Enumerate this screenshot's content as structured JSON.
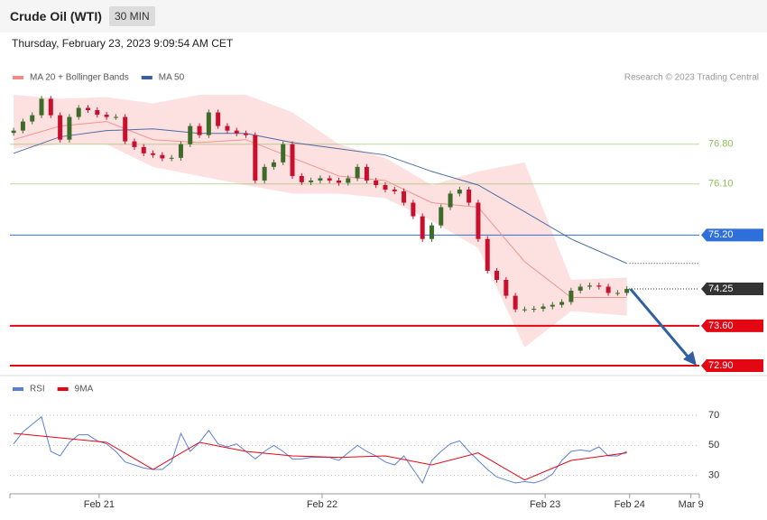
{
  "header": {
    "title": "Crude Oil (WTI)",
    "timeframe": "30 MIN",
    "datetime": "Thursday, February 23, 2023 9:09:54 AM CET",
    "credit": "Research © 2023 Trading Central"
  },
  "chart_data": [
    {
      "type": "candlestick",
      "xlim": [
        -0.4,
        73.8
      ],
      "ylim": [
        72.74,
        77.75
      ],
      "up_color": "#3d6b2a",
      "down_color": "#c8102e",
      "open": [
        77.0,
        77.04,
        77.2,
        77.31,
        77.6,
        77.31,
        76.88,
        77.28,
        77.44,
        77.4,
        77.32,
        77.28,
        77.28,
        76.85,
        76.75,
        76.64,
        76.61,
        76.55,
        76.56,
        76.8,
        77.12,
        76.96,
        77.36,
        77.12,
        77.04,
        76.99,
        76.96,
        76.16,
        76.4,
        76.48,
        76.8,
        76.24,
        76.13,
        76.16,
        76.2,
        76.16,
        76.12,
        76.2,
        76.4,
        76.16,
        76.08,
        76.0,
        75.97,
        75.77,
        75.53,
        75.13,
        75.37,
        75.69,
        75.93,
        76.0,
        75.77,
        75.13,
        74.57,
        74.41,
        74.13,
        73.89,
        73.89,
        73.9,
        73.94,
        73.97,
        74.02,
        74.22,
        74.29,
        74.31,
        74.29,
        74.18,
        74.18
      ],
      "high": [
        77.09,
        77.25,
        77.36,
        77.65,
        77.65,
        77.36,
        77.33,
        77.49,
        77.49,
        77.45,
        77.37,
        77.33,
        77.33,
        76.9,
        76.8,
        76.69,
        76.66,
        76.61,
        76.85,
        77.17,
        77.17,
        77.41,
        77.41,
        77.17,
        77.09,
        77.04,
        77.01,
        76.45,
        76.53,
        76.85,
        76.85,
        76.29,
        76.21,
        76.25,
        76.25,
        76.21,
        76.25,
        76.45,
        76.45,
        76.21,
        76.13,
        76.05,
        76.02,
        75.82,
        75.58,
        75.42,
        75.74,
        75.98,
        76.05,
        76.05,
        75.82,
        75.18,
        74.62,
        74.46,
        74.18,
        73.94,
        73.95,
        73.99,
        74.02,
        74.07,
        74.27,
        74.34,
        74.36,
        74.36,
        74.34,
        74.23,
        74.3
      ],
      "low": [
        76.95,
        76.99,
        77.15,
        77.26,
        77.26,
        76.83,
        76.83,
        77.23,
        77.35,
        77.27,
        77.23,
        77.23,
        76.8,
        76.7,
        76.59,
        76.56,
        76.5,
        76.5,
        76.51,
        76.75,
        76.91,
        76.91,
        77.07,
        76.99,
        76.94,
        76.91,
        76.11,
        76.11,
        76.35,
        76.43,
        76.19,
        76.08,
        76.08,
        76.11,
        76.11,
        76.07,
        76.07,
        76.15,
        76.11,
        76.03,
        75.95,
        75.92,
        75.72,
        75.48,
        75.08,
        75.08,
        75.32,
        75.64,
        75.88,
        75.72,
        75.08,
        74.52,
        74.36,
        74.08,
        73.84,
        73.84,
        73.84,
        73.85,
        73.89,
        73.92,
        73.97,
        74.17,
        74.24,
        74.24,
        74.13,
        74.13,
        74.13
      ],
      "close": [
        77.04,
        77.2,
        77.31,
        77.6,
        77.31,
        76.88,
        77.28,
        77.44,
        77.4,
        77.32,
        77.28,
        77.28,
        76.85,
        76.75,
        76.64,
        76.61,
        76.55,
        76.56,
        76.8,
        77.12,
        76.96,
        77.36,
        77.12,
        77.04,
        76.99,
        76.96,
        76.16,
        76.4,
        76.48,
        76.8,
        76.24,
        76.13,
        76.16,
        76.2,
        76.16,
        76.12,
        76.2,
        76.4,
        76.16,
        76.08,
        76.0,
        75.97,
        75.77,
        75.53,
        75.13,
        75.37,
        75.69,
        75.93,
        76.0,
        75.77,
        75.13,
        74.57,
        74.41,
        74.13,
        73.89,
        73.89,
        73.9,
        73.94,
        73.97,
        74.02,
        74.22,
        74.29,
        74.31,
        74.29,
        74.18,
        74.18,
        74.25
      ],
      "overlay_x": [
        0,
        5,
        10,
        15,
        20,
        25,
        30,
        35,
        40,
        45,
        50,
        55,
        60,
        66
      ],
      "series": [
        {
          "name": "MA 20 + Bollinger Bands",
          "color": "#f08c86",
          "values": [
            76.88,
            77.12,
            77.2,
            76.88,
            76.83,
            76.88,
            76.56,
            76.24,
            76.16,
            75.77,
            75.69,
            74.73,
            74.1,
            74.1
          ],
          "band_upper": [
            77.67,
            77.6,
            77.63,
            77.52,
            77.67,
            77.67,
            77.36,
            76.8,
            76.56,
            76.08,
            76.32,
            76.48,
            74.41,
            74.45
          ],
          "band_lower": [
            76.72,
            76.8,
            76.8,
            76.4,
            76.24,
            76.08,
            75.93,
            75.93,
            75.85,
            75.45,
            74.97,
            73.22,
            73.86,
            73.78
          ],
          "band_color": "#fde0e0"
        },
        {
          "name": "MA 50",
          "color": "#3a5f9c",
          "values": [
            76.64,
            76.93,
            77.04,
            77.07,
            76.99,
            76.99,
            76.83,
            76.72,
            76.61,
            76.32,
            76.08,
            75.61,
            75.13,
            74.7
          ]
        }
      ],
      "levels": [
        {
          "value": 76.8,
          "label": "76.80",
          "color": "#8dbf5a",
          "box": false,
          "line": "solid"
        },
        {
          "value": 76.1,
          "label": "76.10",
          "color": "#8dbf5a",
          "box": false,
          "line": "solid"
        },
        {
          "value": 75.2,
          "label": "75.20",
          "color": "#2f6fdc",
          "box": true,
          "line": "solid"
        },
        {
          "value": 74.25,
          "label": "74.25",
          "color": "#333333",
          "box": true,
          "line": "dotted"
        },
        {
          "value": 73.6,
          "label": "73.60",
          "color": "#e30613",
          "box": true,
          "line": "solid"
        },
        {
          "value": 72.9,
          "label": "72.90",
          "color": "#e30613",
          "box": true,
          "line": "solid"
        }
      ]
    },
    {
      "type": "line",
      "xlim": [
        -0.4,
        73.8
      ],
      "ylim": [
        19,
        82
      ],
      "yticks": [
        30,
        50,
        70
      ],
      "grid": true,
      "xticks": [
        {
          "value": 9.2,
          "label": "Feb 21"
        },
        {
          "value": 33.2,
          "label": "Feb 22"
        },
        {
          "value": 57.2,
          "label": "Feb 23"
        },
        {
          "value": 66.3,
          "label": "Feb 24"
        },
        {
          "value": 72.9,
          "label": "Mar 9"
        }
      ],
      "series": [
        {
          "name": "RSI",
          "color": "#5b7fd6",
          "x": [
            0,
            1,
            2,
            3,
            4,
            5,
            6,
            7,
            8,
            9,
            10,
            11,
            12,
            13,
            14,
            15,
            16,
            17,
            18,
            19,
            20,
            21,
            22,
            23,
            24,
            25,
            26,
            27,
            28,
            29,
            30,
            31,
            32,
            33,
            34,
            35,
            36,
            37,
            38,
            39,
            40,
            41,
            42,
            43,
            44,
            45,
            46,
            47,
            48,
            49,
            50,
            51,
            52,
            53,
            54,
            55,
            56,
            57,
            58,
            59,
            60,
            61,
            62,
            63,
            64,
            65,
            66
          ],
          "values": [
            51,
            59,
            64,
            69,
            46,
            43,
            52,
            57,
            57,
            53,
            51,
            46,
            39,
            37,
            35,
            34,
            34,
            39,
            58,
            46,
            52,
            60,
            51,
            49,
            51,
            46,
            41,
            46,
            50,
            46,
            41,
            41,
            42,
            42,
            42,
            40,
            45,
            50,
            46,
            43,
            39,
            37,
            43,
            34,
            25,
            40,
            46,
            51,
            53,
            46,
            40,
            34,
            29,
            27,
            25,
            26,
            25,
            27,
            31,
            40,
            46,
            47,
            46,
            49,
            43,
            43,
            46
          ]
        },
        {
          "name": "9MA",
          "color": "#e30613",
          "x": [
            0,
            5,
            10,
            15,
            20,
            25,
            30,
            35,
            40,
            45,
            50,
            55,
            60,
            66
          ],
          "values": [
            58,
            55,
            52,
            34,
            52,
            46,
            43,
            42,
            43,
            37,
            45,
            27,
            40,
            45
          ]
        }
      ]
    }
  ]
}
